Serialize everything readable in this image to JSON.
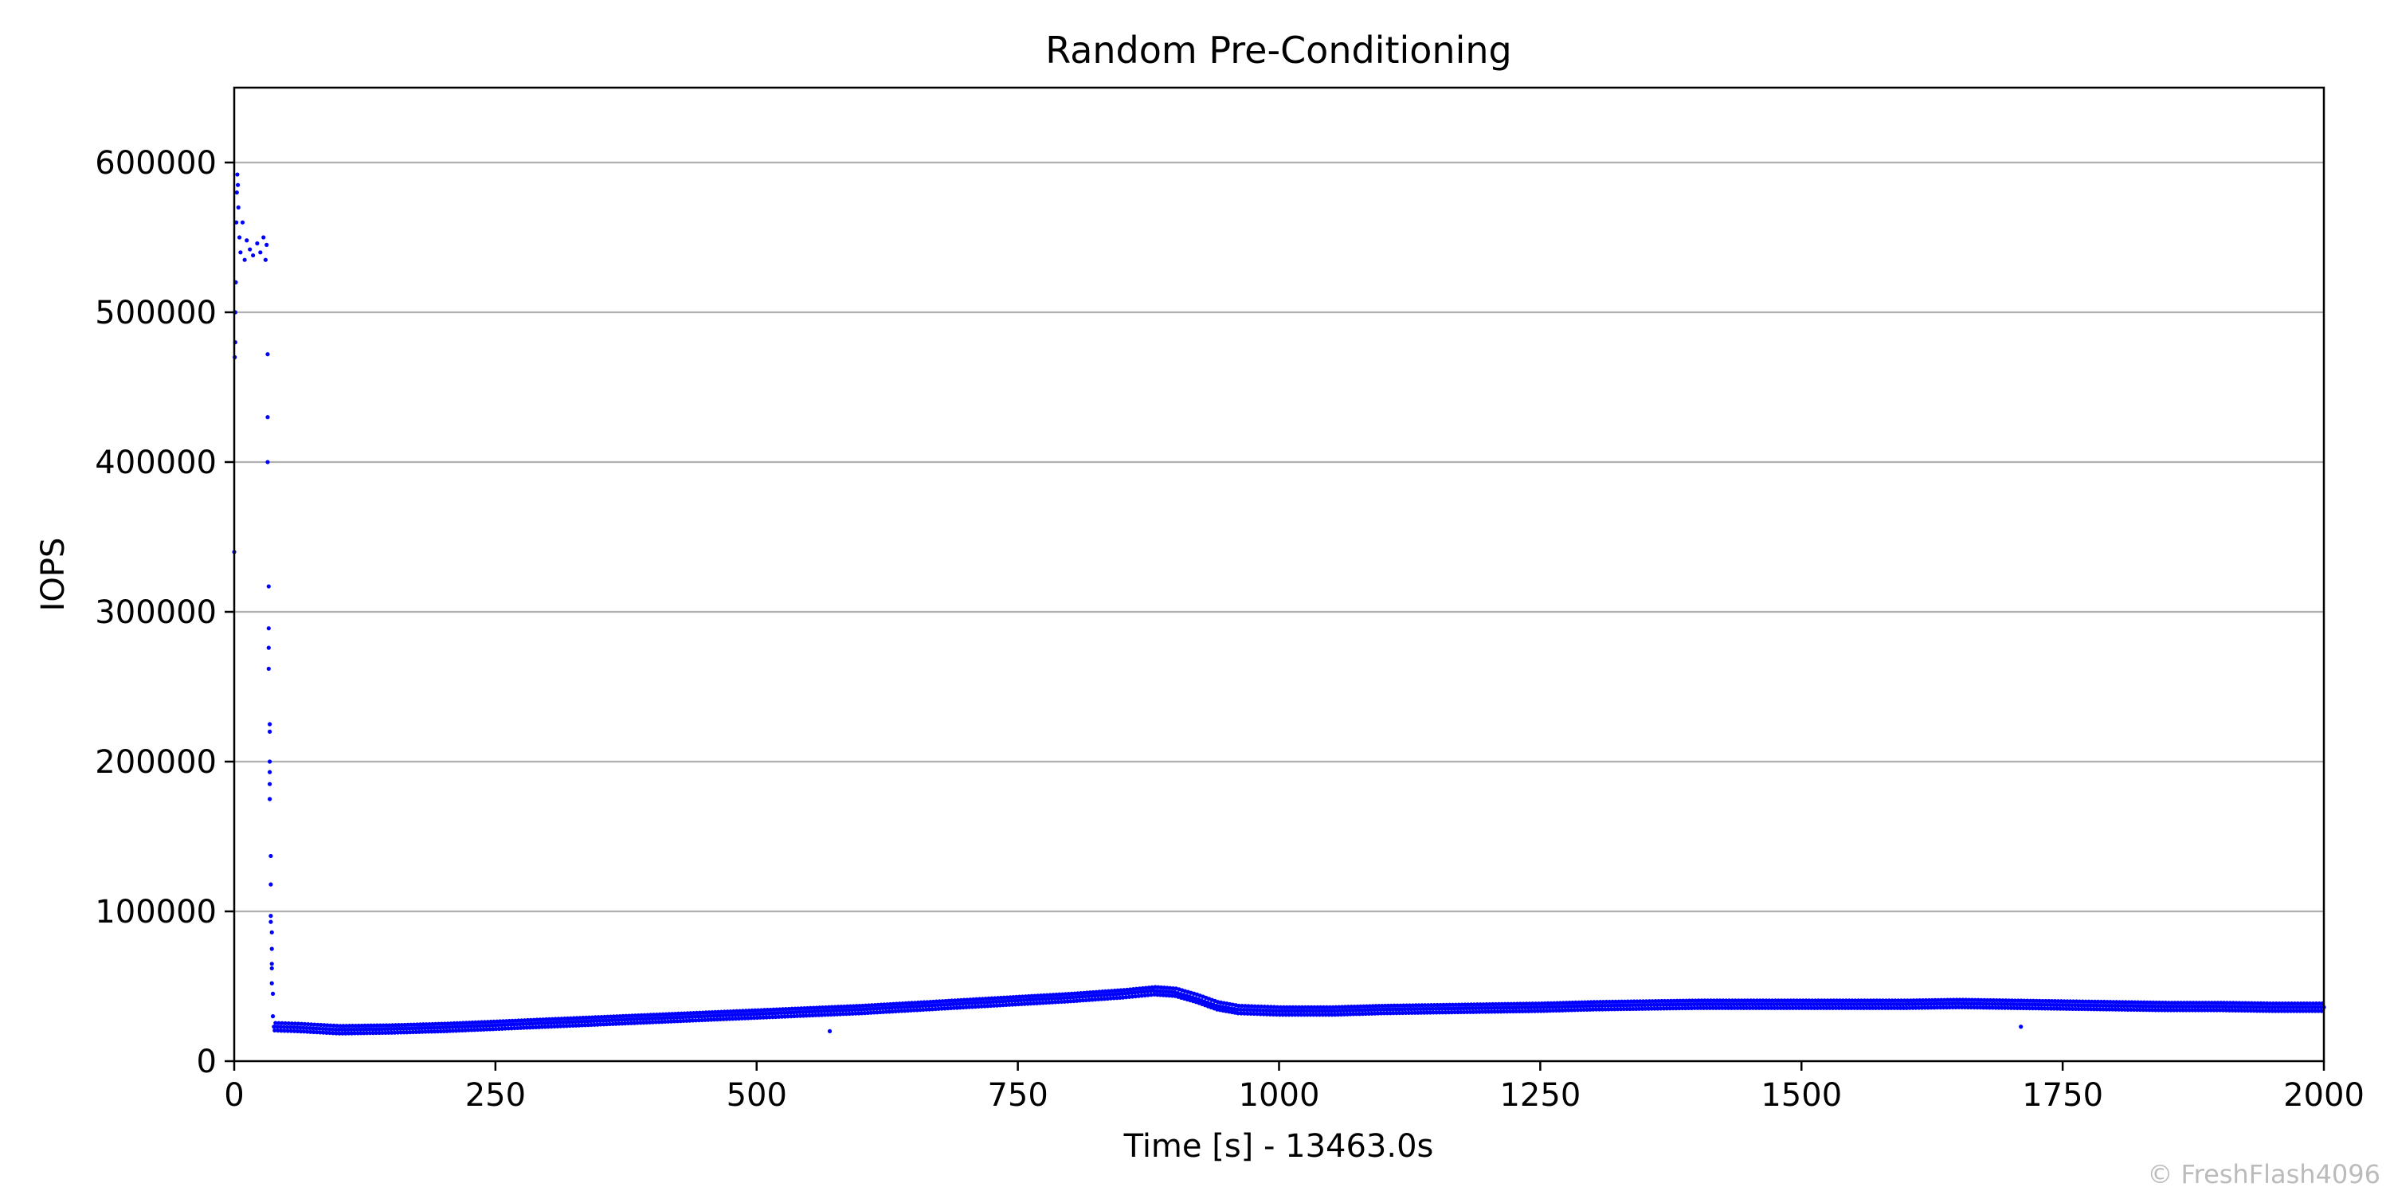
{
  "chart_data": {
    "type": "scatter",
    "title": "Random Pre-Conditioning",
    "xlabel": "Time [s] - 13463.0s",
    "ylabel": "IOPS",
    "xlim": [
      0,
      2000
    ],
    "ylim": [
      0,
      650000
    ],
    "xticks": [
      0,
      250,
      500,
      750,
      1000,
      1250,
      1500,
      1750,
      2000
    ],
    "yticks": [
      0,
      100000,
      200000,
      300000,
      400000,
      500000,
      600000
    ],
    "grid": "horizontal",
    "marker_color": "#0000ff",
    "series": [
      {
        "name": "",
        "points": [
          [
            0,
            340000
          ],
          [
            0.5,
            470000
          ],
          [
            1,
            480000
          ],
          [
            1,
            500000
          ],
          [
            1.5,
            520000
          ],
          [
            2,
            560000
          ],
          [
            2.5,
            580000
          ],
          [
            3,
            592000
          ],
          [
            3.5,
            585000
          ],
          [
            4,
            570000
          ],
          [
            5,
            550000
          ],
          [
            6,
            540000
          ],
          [
            8,
            560000
          ],
          [
            10,
            535000
          ],
          [
            12,
            548000
          ],
          [
            15,
            542000
          ],
          [
            18,
            538000
          ],
          [
            22,
            546000
          ],
          [
            25,
            540000
          ],
          [
            28,
            550000
          ],
          [
            30,
            535000
          ],
          [
            31,
            545000
          ],
          [
            32,
            472000
          ],
          [
            32,
            430000
          ],
          [
            32,
            400000
          ],
          [
            33,
            317000
          ],
          [
            33,
            289000
          ],
          [
            33,
            276000
          ],
          [
            33,
            262000
          ],
          [
            34,
            225000
          ],
          [
            34,
            220000
          ],
          [
            34,
            200000
          ],
          [
            34,
            193000
          ],
          [
            34,
            185000
          ],
          [
            34,
            175000
          ],
          [
            35,
            137000
          ],
          [
            35,
            118000
          ],
          [
            35,
            97000
          ],
          [
            35,
            93000
          ],
          [
            36,
            86000
          ],
          [
            36,
            75000
          ],
          [
            36,
            65000
          ],
          [
            36,
            62000
          ],
          [
            36,
            52000
          ],
          [
            37,
            45000
          ],
          [
            37,
            30000
          ],
          [
            570,
            20000
          ],
          [
            1710,
            23000
          ]
        ],
        "trend": [
          [
            38,
            23000
          ],
          [
            60,
            22500
          ],
          [
            100,
            21000
          ],
          [
            150,
            21500
          ],
          [
            200,
            22500
          ],
          [
            250,
            24000
          ],
          [
            300,
            25500
          ],
          [
            350,
            27000
          ],
          [
            400,
            28500
          ],
          [
            450,
            30000
          ],
          [
            500,
            31500
          ],
          [
            550,
            33000
          ],
          [
            600,
            34500
          ],
          [
            650,
            36500
          ],
          [
            700,
            38500
          ],
          [
            750,
            40500
          ],
          [
            800,
            42500
          ],
          [
            850,
            45000
          ],
          [
            880,
            47000
          ],
          [
            900,
            46000
          ],
          [
            920,
            42000
          ],
          [
            940,
            37000
          ],
          [
            960,
            34500
          ],
          [
            1000,
            33500
          ],
          [
            1050,
            33500
          ],
          [
            1100,
            34500
          ],
          [
            1150,
            35000
          ],
          [
            1200,
            35500
          ],
          [
            1250,
            36000
          ],
          [
            1300,
            37000
          ],
          [
            1350,
            37500
          ],
          [
            1400,
            38000
          ],
          [
            1450,
            38000
          ],
          [
            1500,
            38000
          ],
          [
            1550,
            38000
          ],
          [
            1600,
            38000
          ],
          [
            1650,
            38500
          ],
          [
            1700,
            38000
          ],
          [
            1750,
            37500
          ],
          [
            1800,
            37000
          ],
          [
            1850,
            36500
          ],
          [
            1900,
            36500
          ],
          [
            1950,
            36000
          ],
          [
            2000,
            36000
          ]
        ]
      }
    ]
  },
  "watermark": "© FreshFlash4096"
}
